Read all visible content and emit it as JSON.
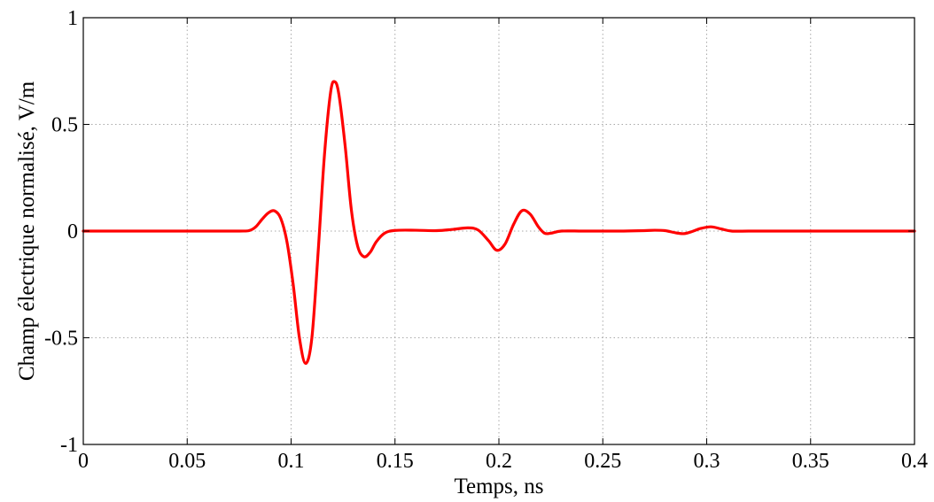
{
  "chart_data": {
    "type": "line",
    "title": "",
    "xlabel": "Temps, ns",
    "ylabel": "Champ électrique normalisé, V/m",
    "xlim": [
      0,
      0.4
    ],
    "ylim": [
      -1,
      1
    ],
    "xticks": [
      0,
      0.05,
      0.1,
      0.15,
      0.2,
      0.25,
      0.3,
      0.35,
      0.4
    ],
    "xtick_labels": [
      "0",
      "0.05",
      "0.1",
      "0.15",
      "0.2",
      "0.25",
      "0.3",
      "0.35",
      "0.4"
    ],
    "yticks": [
      -1,
      -0.5,
      0,
      0.5,
      1
    ],
    "ytick_labels": [
      "-1",
      "-0.5",
      "0",
      "0.5",
      "1"
    ],
    "grid": true,
    "legend": "none",
    "series": [
      {
        "color": "#ff0000",
        "x": [
          0,
          0.05,
          0.075,
          0.08,
          0.083,
          0.086,
          0.089,
          0.092,
          0.095,
          0.098,
          0.101,
          0.104,
          0.107,
          0.11,
          0.113,
          0.116,
          0.119,
          0.121,
          0.123,
          0.126,
          0.129,
          0.132,
          0.135,
          0.138,
          0.141,
          0.145,
          0.15,
          0.16,
          0.17,
          0.178,
          0.185,
          0.19,
          0.195,
          0.199,
          0.203,
          0.207,
          0.211,
          0.215,
          0.219,
          0.222,
          0.225,
          0.23,
          0.24,
          0.25,
          0.26,
          0.27,
          0.275,
          0.28,
          0.285,
          0.289,
          0.293,
          0.297,
          0.302,
          0.307,
          0.312,
          0.32,
          0.33,
          0.34,
          0.35,
          0.36,
          0.37,
          0.38,
          0.39,
          0.4
        ],
        "y": [
          0,
          0,
          0,
          0.003,
          0.02,
          0.055,
          0.085,
          0.095,
          0.06,
          -0.05,
          -0.25,
          -0.5,
          -0.62,
          -0.5,
          -0.1,
          0.35,
          0.65,
          0.7,
          0.64,
          0.4,
          0.1,
          -0.07,
          -0.12,
          -0.1,
          -0.05,
          -0.01,
          0.003,
          0.004,
          0.002,
          0.008,
          0.015,
          0.005,
          -0.045,
          -0.09,
          -0.06,
          0.03,
          0.095,
          0.08,
          0.02,
          -0.01,
          -0.01,
          0,
          0,
          0,
          0,
          0.002,
          0.004,
          0.002,
          -0.008,
          -0.012,
          -0.002,
          0.012,
          0.02,
          0.01,
          0,
          0,
          0,
          0,
          0,
          0,
          0,
          0,
          0,
          0
        ]
      }
    ]
  }
}
